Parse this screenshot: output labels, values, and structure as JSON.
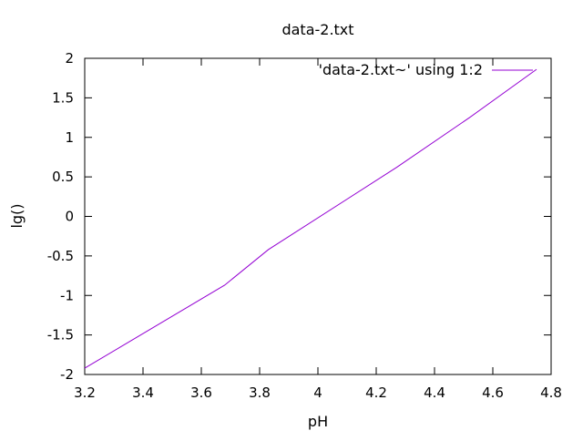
{
  "chart_data": {
    "type": "line",
    "title": "data-2.txt",
    "xlabel": "pH",
    "ylabel": "lg()",
    "xlim": [
      3.2,
      4.8
    ],
    "ylim": [
      -2,
      2
    ],
    "xticks": [
      3.2,
      3.4,
      3.6,
      3.8,
      4.0,
      4.2,
      4.4,
      4.6,
      4.8
    ],
    "xtick_labels": [
      "3.2",
      "3.4",
      "3.6",
      "3.8",
      "4",
      "4.2",
      "4.4",
      "4.6",
      "4.8"
    ],
    "yticks": [
      -2,
      -1.5,
      -1,
      -0.5,
      0,
      0.5,
      1,
      1.5,
      2
    ],
    "ytick_labels": [
      "-2",
      "-1.5",
      "-1",
      "-0.5",
      "0",
      "0.5",
      "1",
      "1.5",
      "2"
    ],
    "grid": false,
    "legend_position": "top-right",
    "series": [
      {
        "name": "'data-2.txt~' using 1:2",
        "color": "#9400d3",
        "x": [
          3.2,
          3.68,
          3.83,
          4.27,
          4.52,
          4.75
        ],
        "y": [
          -1.92,
          -0.87,
          -0.42,
          0.62,
          1.25,
          1.86
        ]
      }
    ]
  }
}
